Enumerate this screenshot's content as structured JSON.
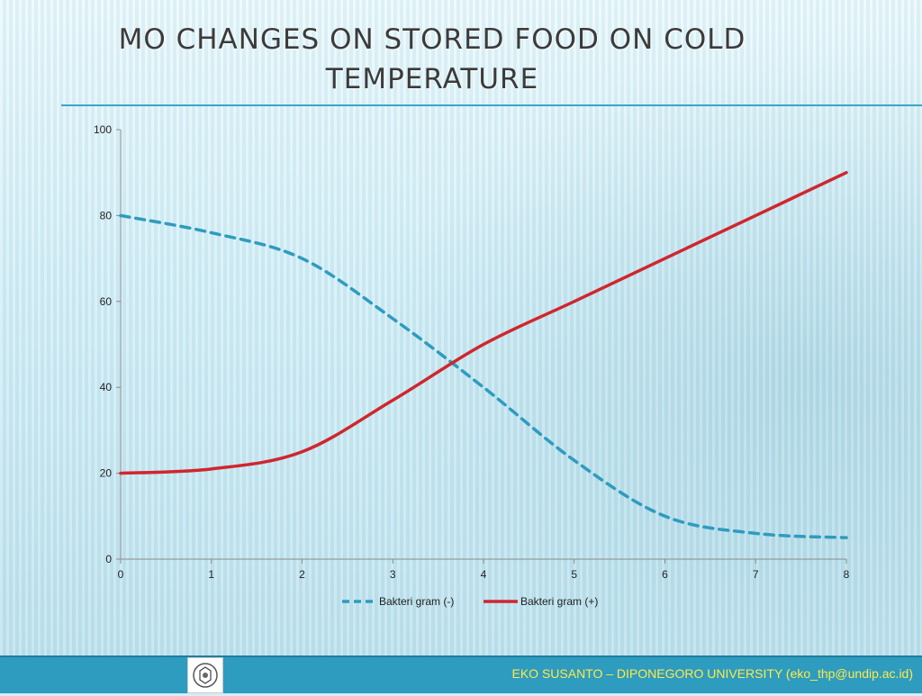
{
  "slide": {
    "title_line1": "MO CHANGES ON STORED FOOD ON COLD",
    "title_line2": "TEMPERATURE",
    "footer": "EKO SUSANTO – DIPONEGORO UNIVERSITY (eko_thp@undip.ac.id)"
  },
  "chart_data": {
    "type": "line",
    "title": "",
    "xlabel": "",
    "ylabel": "",
    "x": [
      0,
      1,
      2,
      3,
      4,
      5,
      6,
      7,
      8
    ],
    "xlim": [
      0,
      8
    ],
    "ylim": [
      0,
      100
    ],
    "yticks": [
      0,
      20,
      40,
      60,
      80,
      100
    ],
    "xticks": [
      0,
      1,
      2,
      3,
      4,
      5,
      6,
      7,
      8
    ],
    "grid": false,
    "legend_position": "bottom",
    "smooth": true,
    "series": [
      {
        "name": "Bakteri gram (-)",
        "values": [
          80,
          76,
          70,
          56,
          40,
          23,
          10,
          6,
          5
        ],
        "color": "#2e9cbf",
        "style": "dashed"
      },
      {
        "name": "Bakteri gram (+)",
        "values": [
          20,
          21,
          25,
          37,
          50,
          60,
          70,
          80,
          90
        ],
        "color": "#d0262e",
        "style": "solid"
      }
    ]
  }
}
